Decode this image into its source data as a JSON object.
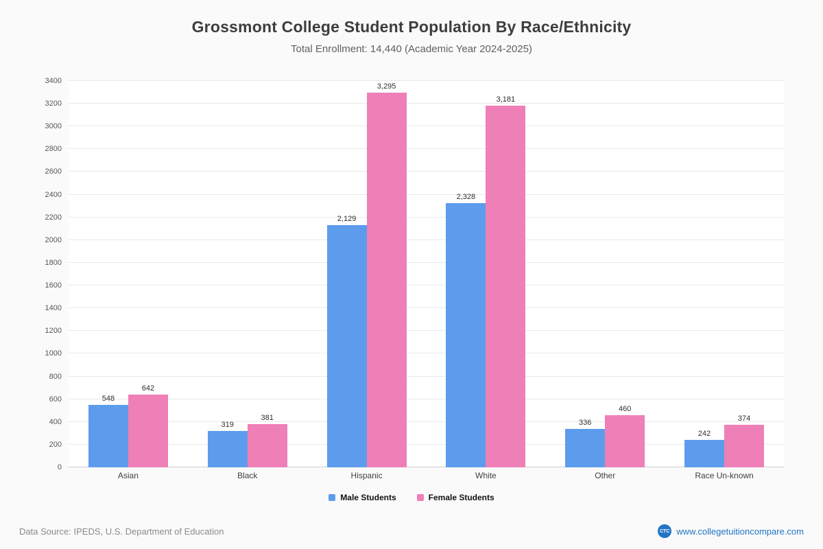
{
  "header": {
    "title": "Grossmont College Student Population By Race/Ethnicity",
    "subtitle": "Total Enrollment: 14,440 (Academic Year 2024-2025)"
  },
  "chart_data": {
    "type": "bar",
    "title": "Grossmont College Student Population By Race/Ethnicity",
    "subtitle": "Total Enrollment: 14,440 (Academic Year 2024-2025)",
    "categories": [
      "Asian",
      "Black",
      "Hispanic",
      "White",
      "Other",
      "Race Un-known"
    ],
    "series": [
      {
        "name": "Male Students",
        "color": "#5d9cec",
        "values": [
          548,
          319,
          2129,
          2328,
          336,
          242
        ]
      },
      {
        "name": "Female Students",
        "color": "#ef7fb7",
        "values": [
          642,
          381,
          3295,
          3181,
          460,
          374
        ]
      }
    ],
    "xlabel": "",
    "ylabel": "",
    "ylim": [
      0,
      3400
    ],
    "ytick_step": 200,
    "grid": true,
    "legend_position": "bottom",
    "value_labels": true
  },
  "footer": {
    "source": "Data Source: IPEDS, U.S. Department of Education",
    "logo_text": "CTC",
    "website": "www.collegetuitioncompare.com"
  }
}
